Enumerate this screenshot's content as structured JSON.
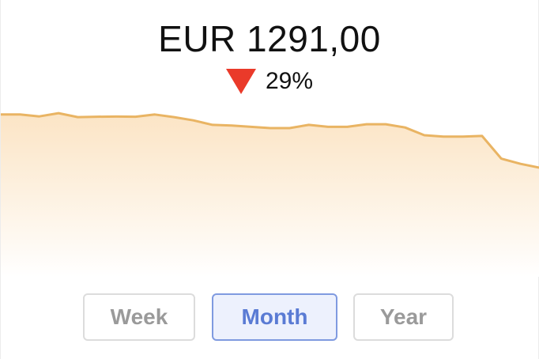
{
  "header": {
    "price": "EUR 1291,00",
    "change_pct": "29%",
    "change_direction": "down",
    "down_color": "#ea3a2a"
  },
  "chart_data": {
    "type": "area",
    "title": "",
    "xlabel": "",
    "ylabel": "",
    "x": [
      0,
      1,
      2,
      3,
      4,
      5,
      6,
      7,
      8,
      9,
      10,
      11,
      12,
      13,
      14,
      15,
      16,
      17,
      18,
      19,
      20,
      21,
      22,
      23,
      24,
      25,
      26,
      27,
      28
    ],
    "values": [
      100,
      100,
      97,
      102,
      96,
      96.5,
      96.8,
      96.6,
      100,
      96,
      91,
      84,
      83,
      81,
      79,
      79,
      84,
      81,
      81,
      85,
      85,
      80,
      68,
      66,
      66,
      67,
      32,
      24,
      18
    ],
    "ylim": [
      -150,
      118
    ],
    "grid": false,
    "line_color": "#e9b463",
    "fill_color": "#fbe7c9"
  },
  "periods": {
    "options": [
      "Week",
      "Month",
      "Year"
    ],
    "selected": "Month"
  }
}
